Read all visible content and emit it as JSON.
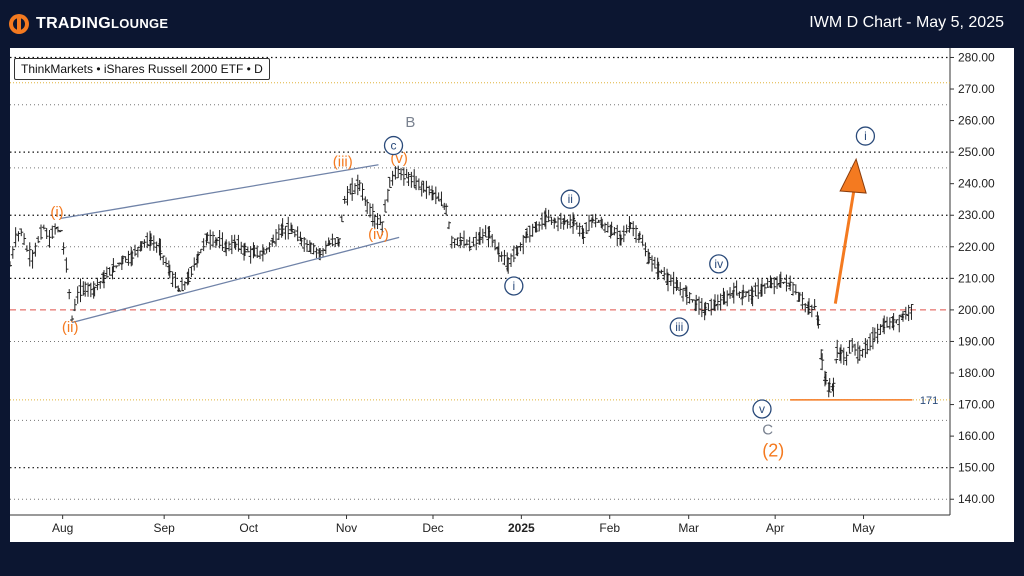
{
  "header": {
    "brand_prefix": "TRADING",
    "brand_suffix": "LOUNGE",
    "title": "IWM D Chart - May 5, 2025"
  },
  "legend": "ThinkMarkets • iShares Russell 2000 ETF • D",
  "colors": {
    "background": "#0c1631",
    "orange": "#f47a20",
    "navy": "#2a4a7a",
    "gray_label": "#7a8290",
    "red_dash": "#e0504a",
    "gold_dot": "#e0b33a"
  },
  "chart_data": {
    "type": "ohlc",
    "x_ticks": [
      "Aug",
      "Sep",
      "Oct",
      "Nov",
      "Dec",
      "2025",
      "Feb",
      "Mar",
      "Apr",
      "May"
    ],
    "y_ticks": [
      "280.00",
      "270.00",
      "260.00",
      "250.00",
      "240.00",
      "230.00",
      "220.00",
      "210.00",
      "200.00",
      "190.00",
      "180.00",
      "170.00",
      "160.00",
      "150.00",
      "140.00"
    ],
    "ylim": [
      135,
      283
    ],
    "price_path": [
      [
        0,
        214
      ],
      [
        3,
        223
      ],
      [
        6,
        225
      ],
      [
        9,
        219
      ],
      [
        12,
        217
      ],
      [
        15,
        222
      ],
      [
        18,
        226
      ],
      [
        21,
        222
      ],
      [
        24,
        226
      ],
      [
        27,
        225
      ],
      [
        30,
        214
      ],
      [
        33,
        197
      ],
      [
        36,
        205
      ],
      [
        40,
        207
      ],
      [
        45,
        207
      ],
      [
        50,
        210
      ],
      [
        55,
        213
      ],
      [
        60,
        216
      ],
      [
        65,
        217
      ],
      [
        70,
        221
      ],
      [
        75,
        222
      ],
      [
        80,
        219
      ],
      [
        85,
        212
      ],
      [
        90,
        206
      ],
      [
        95,
        210
      ],
      [
        100,
        217
      ],
      [
        105,
        223
      ],
      [
        110,
        222
      ],
      [
        115,
        220
      ],
      [
        120,
        221
      ],
      [
        125,
        219
      ],
      [
        130,
        218
      ],
      [
        135,
        218
      ],
      [
        140,
        222
      ],
      [
        145,
        226
      ],
      [
        150,
        225
      ],
      [
        155,
        222
      ],
      [
        160,
        220
      ],
      [
        165,
        218
      ],
      [
        170,
        221
      ],
      [
        175,
        222
      ],
      [
        178,
        235
      ],
      [
        182,
        238
      ],
      [
        186,
        240
      ],
      [
        190,
        233
      ],
      [
        194,
        229
      ],
      [
        198,
        227
      ],
      [
        202,
        240
      ],
      [
        205,
        244
      ],
      [
        208,
        243
      ],
      [
        212,
        242
      ],
      [
        216,
        240
      ],
      [
        220,
        239
      ],
      [
        225,
        237
      ],
      [
        228,
        235
      ],
      [
        232,
        232
      ],
      [
        235,
        222
      ],
      [
        240,
        222
      ],
      [
        245,
        220
      ],
      [
        250,
        223
      ],
      [
        255,
        224
      ],
      [
        260,
        218
      ],
      [
        265,
        215
      ],
      [
        270,
        219
      ],
      [
        275,
        224
      ],
      [
        280,
        226
      ],
      [
        285,
        229
      ],
      [
        290,
        228
      ],
      [
        295,
        228
      ],
      [
        300,
        228
      ],
      [
        305,
        224
      ],
      [
        310,
        229
      ],
      [
        315,
        227
      ],
      [
        320,
        225
      ],
      [
        325,
        223
      ],
      [
        330,
        227
      ],
      [
        335,
        223
      ],
      [
        340,
        216
      ],
      [
        345,
        213
      ],
      [
        350,
        210
      ],
      [
        355,
        207
      ],
      [
        360,
        205
      ],
      [
        365,
        202
      ],
      [
        370,
        200
      ],
      [
        375,
        202
      ],
      [
        380,
        203
      ],
      [
        385,
        206
      ],
      [
        390,
        205
      ],
      [
        395,
        205
      ],
      [
        400,
        207
      ],
      [
        405,
        208
      ],
      [
        410,
        209
      ],
      [
        415,
        208
      ],
      [
        420,
        204
      ],
      [
        425,
        200
      ],
      [
        428,
        201
      ],
      [
        430,
        196
      ],
      [
        432,
        183
      ],
      [
        434,
        178
      ],
      [
        436,
        175
      ],
      [
        438,
        176
      ],
      [
        440,
        187
      ],
      [
        442,
        186
      ],
      [
        445,
        185
      ],
      [
        448,
        189
      ],
      [
        452,
        186
      ],
      [
        456,
        188
      ],
      [
        460,
        192
      ],
      [
        465,
        195
      ],
      [
        470,
        196
      ],
      [
        475,
        198
      ],
      [
        480,
        201
      ]
    ],
    "wave_labels": [
      {
        "text": "(i)",
        "color": "orange",
        "day": 25,
        "price": 229.5
      },
      {
        "text": "(ii)",
        "color": "orange",
        "day": 32,
        "price": 193
      },
      {
        "text": "(iii)",
        "color": "orange",
        "day": 177,
        "price": 245.5
      },
      {
        "text": "(iv)",
        "color": "orange",
        "day": 196,
        "price": 222.5
      },
      {
        "text": "(v)",
        "color": "orange",
        "day": 207,
        "price": 246.5
      },
      {
        "text": "B",
        "color": "gray",
        "day": 213,
        "price": 258
      },
      {
        "text": "c",
        "color": "navy",
        "day": 204,
        "price": 250.5,
        "circled": true
      },
      {
        "text": "i",
        "color": "navy",
        "day": 268,
        "price": 206,
        "circled": true
      },
      {
        "text": "ii",
        "color": "navy",
        "day": 298,
        "price": 233.5,
        "circled": true
      },
      {
        "text": "iii",
        "color": "navy",
        "day": 356,
        "price": 193,
        "circled": true
      },
      {
        "text": "iv",
        "color": "navy",
        "day": 377,
        "price": 213,
        "circled": true
      },
      {
        "text": "v",
        "color": "navy",
        "day": 400,
        "price": 167,
        "circled": true
      },
      {
        "text": "C",
        "color": "gray",
        "day": 403,
        "price": 160.5
      },
      {
        "text": "(2)",
        "color": "orange",
        "day": 406,
        "price": 153.5
      },
      {
        "text": "i",
        "color": "navy",
        "day": 455,
        "price": 253.5,
        "circled": true
      }
    ],
    "channel": {
      "upper": [
        [
          27,
          229
        ],
        [
          196,
          246
        ]
      ],
      "lower": [
        [
          33,
          196
        ],
        [
          207,
          223
        ]
      ]
    },
    "projection": {
      "from": [
        439,
        202
      ],
      "to": [
        449,
        244
      ]
    },
    "hlines": {
      "dotted_black": [
        280,
        250,
        230,
        210,
        150
      ],
      "dotted_gray": [
        265,
        245,
        220,
        190,
        165,
        140
      ],
      "dotted_gold": 272,
      "dotted_gold_low": 171.5,
      "dashed_red": 200,
      "support_orange": 171.5
    },
    "support_label": "171"
  }
}
